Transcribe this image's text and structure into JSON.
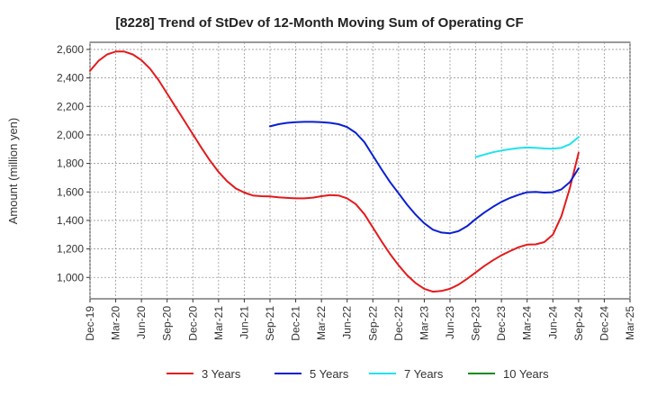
{
  "chart_data": {
    "type": "line",
    "title": "[8228]  Trend of StDev of 12-Month Moving Sum of Operating CF",
    "xlabel": "",
    "ylabel": "Amount (million yen)",
    "ylim": [
      850,
      2650
    ],
    "y_ticks": [
      1000,
      1200,
      1400,
      1600,
      1800,
      2000,
      2200,
      2400,
      2600
    ],
    "y_tick_labels": [
      "1,000",
      "1,200",
      "1,400",
      "1,600",
      "1,800",
      "2,000",
      "2,200",
      "2,400",
      "2,600"
    ],
    "x_ticks": [
      "Dec-19",
      "Mar-20",
      "Jun-20",
      "Sep-20",
      "Dec-20",
      "Mar-21",
      "Jun-21",
      "Sep-21",
      "Dec-21",
      "Mar-22",
      "Jun-22",
      "Sep-22",
      "Dec-22",
      "Mar-23",
      "Jun-23",
      "Sep-23",
      "Dec-23",
      "Mar-24",
      "Jun-24",
      "Sep-24",
      "Dec-24",
      "Mar-25"
    ],
    "grid": true,
    "legend_position": "bottom",
    "series": [
      {
        "name": "3 Years",
        "color": "#e31a1c",
        "x": [
          "Dec-19",
          "Jan-20",
          "Feb-20",
          "Mar-20",
          "Apr-20",
          "May-20",
          "Jun-20",
          "Jul-20",
          "Aug-20",
          "Sep-20",
          "Oct-20",
          "Nov-20",
          "Dec-20",
          "Jan-21",
          "Feb-21",
          "Mar-21",
          "Apr-21",
          "May-21",
          "Jun-21",
          "Jul-21",
          "Aug-21",
          "Sep-21",
          "Oct-21",
          "Nov-21",
          "Dec-21",
          "Jan-22",
          "Feb-22",
          "Mar-22",
          "Apr-22",
          "May-22",
          "Jun-22",
          "Jul-22",
          "Aug-22",
          "Sep-22",
          "Oct-22",
          "Nov-22",
          "Dec-22",
          "Jan-23",
          "Feb-23",
          "Mar-23",
          "Apr-23",
          "May-23",
          "Jun-23",
          "Jul-23",
          "Aug-23",
          "Sep-23",
          "Oct-23",
          "Nov-23",
          "Dec-23",
          "Jan-24",
          "Feb-24",
          "Mar-24",
          "Apr-24",
          "May-24",
          "Jun-24",
          "Jul-24",
          "Aug-24",
          "Sep-24"
        ],
        "values": [
          2450,
          2520,
          2565,
          2585,
          2585,
          2565,
          2525,
          2465,
          2385,
          2290,
          2195,
          2100,
          2005,
          1910,
          1820,
          1740,
          1675,
          1625,
          1595,
          1575,
          1570,
          1568,
          1562,
          1558,
          1555,
          1555,
          1560,
          1570,
          1578,
          1575,
          1555,
          1515,
          1445,
          1350,
          1255,
          1165,
          1085,
          1015,
          960,
          920,
          900,
          905,
          920,
          950,
          990,
          1035,
          1080,
          1120,
          1155,
          1185,
          1212,
          1230,
          1232,
          1248,
          1300,
          1430,
          1630,
          1875
        ]
      },
      {
        "name": "5 Years",
        "color": "#0a1fd1",
        "x": [
          "Sep-21",
          "Oct-21",
          "Nov-21",
          "Dec-21",
          "Jan-22",
          "Feb-22",
          "Mar-22",
          "Apr-22",
          "May-22",
          "Jun-22",
          "Jul-22",
          "Aug-22",
          "Sep-22",
          "Oct-22",
          "Nov-22",
          "Dec-22",
          "Jan-23",
          "Feb-23",
          "Mar-23",
          "Apr-23",
          "May-23",
          "Jun-23",
          "Jul-23",
          "Aug-23",
          "Sep-23",
          "Oct-23",
          "Nov-23",
          "Dec-23",
          "Jan-24",
          "Feb-24",
          "Mar-24",
          "Apr-24",
          "May-24",
          "Jun-24",
          "Jul-24",
          "Aug-24",
          "Sep-24"
        ],
        "values": [
          2060,
          2075,
          2085,
          2090,
          2092,
          2092,
          2090,
          2085,
          2075,
          2055,
          2015,
          1950,
          1855,
          1760,
          1670,
          1590,
          1510,
          1440,
          1380,
          1335,
          1315,
          1310,
          1325,
          1360,
          1410,
          1455,
          1495,
          1530,
          1558,
          1580,
          1598,
          1600,
          1595,
          1598,
          1618,
          1670,
          1765
        ]
      },
      {
        "name": "7 Years",
        "color": "#22e1ef",
        "x": [
          "Sep-23",
          "Oct-23",
          "Nov-23",
          "Dec-23",
          "Jan-24",
          "Feb-24",
          "Mar-24",
          "Apr-24",
          "May-24",
          "Jun-24",
          "Jul-24",
          "Aug-24",
          "Sep-24"
        ],
        "values": [
          1845,
          1862,
          1878,
          1890,
          1900,
          1908,
          1912,
          1910,
          1905,
          1903,
          1910,
          1935,
          1985
        ]
      },
      {
        "name": "10 Years",
        "color": "#1a8a1a",
        "x": [],
        "values": []
      }
    ]
  }
}
